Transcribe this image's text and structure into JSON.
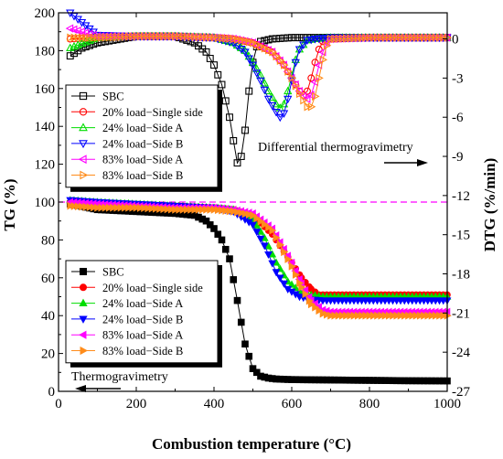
{
  "chart_data": {
    "type": "line",
    "xlabel": "Combustion temperature (°C)",
    "ylabel_left": "TG (%)",
    "ylabel_right": "DTG (%/min)",
    "xlim": [
      0,
      1000
    ],
    "ylim_left": [
      0,
      200
    ],
    "ylim_right": [
      -27,
      2
    ],
    "x_ticks": [
      0,
      200,
      400,
      600,
      800,
      1000
    ],
    "y_left_ticks": [
      0,
      20,
      40,
      60,
      80,
      100,
      120,
      140,
      160,
      180,
      200
    ],
    "y_right_ticks": [
      0,
      -3,
      -6,
      -9,
      -12,
      -15,
      -18,
      -21,
      -24,
      -27
    ],
    "reference_line": {
      "axis": "left",
      "y": 100,
      "color": "#ff00ff",
      "style": "dashed"
    },
    "annotations": [
      {
        "text": "Differential thermogravimetry",
        "arrow": "right"
      },
      {
        "text": "Thermogravimetry",
        "arrow": "left"
      }
    ],
    "series_tg": [
      {
        "name": "SBC",
        "color": "#000000",
        "marker": "square",
        "filled": true,
        "x": [
          30,
          100,
          200,
          300,
          350,
          380,
          400,
          420,
          440,
          460,
          480,
          500,
          520,
          540,
          560,
          600,
          700,
          800,
          900,
          1000
        ],
        "y": [
          99,
          96,
          95,
          94,
          93,
          90,
          86,
          80,
          70,
          48,
          25,
          12,
          8,
          7,
          6.5,
          6.2,
          6,
          5.8,
          5.6,
          5.5
        ]
      },
      {
        "name": "20% load−Single side",
        "color": "#ff0000",
        "marker": "circle",
        "filled": true,
        "x": [
          30,
          100,
          200,
          300,
          400,
          450,
          500,
          550,
          600,
          625,
          650,
          670,
          700,
          800,
          900,
          1000
        ],
        "y": [
          100,
          99,
          98,
          98,
          97,
          96,
          93,
          83,
          68,
          60,
          54,
          51,
          51,
          51,
          51,
          51
        ]
      },
      {
        "name": "24% load−Side A",
        "color": "#00dd00",
        "marker": "triangle-up",
        "filled": true,
        "x": [
          30,
          100,
          200,
          300,
          400,
          450,
          500,
          530,
          560,
          590,
          620,
          650,
          680,
          700,
          800,
          900,
          1000
        ],
        "y": [
          101,
          100,
          99,
          98,
          97,
          96,
          91,
          81,
          68,
          58,
          53,
          51,
          50,
          50,
          50,
          50,
          50
        ]
      },
      {
        "name": "24% load−Side B",
        "color": "#0000ff",
        "marker": "triangle-down",
        "filled": true,
        "x": [
          30,
          100,
          200,
          300,
          400,
          450,
          500,
          530,
          560,
          590,
          620,
          650,
          680,
          700,
          800,
          900,
          1000
        ],
        "y": [
          101,
          100,
          99,
          98,
          97,
          95,
          88,
          77,
          63,
          54,
          50,
          48.5,
          48,
          48,
          48,
          48,
          48
        ]
      },
      {
        "name": "83% load−Side A",
        "color": "#ff00ff",
        "marker": "triangle-left",
        "filled": true,
        "x": [
          30,
          100,
          200,
          300,
          400,
          450,
          500,
          550,
          600,
          625,
          650,
          680,
          700,
          800,
          900,
          1000
        ],
        "y": [
          100,
          99,
          98,
          97,
          97,
          96,
          94,
          86,
          68,
          57,
          48,
          43,
          42,
          42,
          42,
          42
        ]
      },
      {
        "name": "83% load−Side B",
        "color": "#ff8c1a",
        "marker": "triangle-right",
        "filled": true,
        "x": [
          30,
          100,
          200,
          300,
          400,
          450,
          500,
          550,
          600,
          625,
          650,
          680,
          700,
          800,
          900,
          1000
        ],
        "y": [
          98,
          97,
          97,
          96,
          96,
          95,
          93,
          85,
          66,
          55,
          46,
          41,
          40,
          40,
          40,
          40
        ]
      }
    ],
    "series_dtg": [
      {
        "name": "SBC",
        "color": "#000000",
        "marker": "square",
        "filled": false,
        "x": [
          30,
          60,
          100,
          200,
          300,
          350,
          380,
          400,
          420,
          440,
          450,
          460,
          470,
          480,
          490,
          500,
          510,
          520,
          550,
          600,
          700,
          800,
          900,
          1000
        ],
        "y": [
          -1.3,
          -0.7,
          -0.3,
          0.2,
          0.2,
          -0.3,
          -1.0,
          -2.0,
          -3.5,
          -6.0,
          -7.8,
          -9.5,
          -9.0,
          -7.0,
          -4.0,
          -1.8,
          -0.6,
          -0.2,
          0.0,
          0.1,
          0.1,
          0.1,
          0.1,
          0.1
        ]
      },
      {
        "name": "20% load−Single side",
        "color": "#ff0000",
        "marker": "circle",
        "filled": false,
        "x": [
          30,
          100,
          200,
          300,
          400,
          450,
          500,
          550,
          580,
          600,
          610,
          620,
          630,
          640,
          650,
          660,
          670,
          680,
          700,
          800,
          900,
          1000
        ],
        "y": [
          0.0,
          0.1,
          0.2,
          0.2,
          0.1,
          0.0,
          -0.3,
          -1.0,
          -2.0,
          -3.0,
          -3.5,
          -4.0,
          -4.3,
          -4.0,
          -3.0,
          -1.8,
          -0.8,
          -0.2,
          0.0,
          0.1,
          0.1,
          0.1
        ]
      },
      {
        "name": "24% load−Side A",
        "color": "#00dd00",
        "marker": "triangle-up",
        "filled": false,
        "x": [
          30,
          100,
          200,
          300,
          400,
          450,
          480,
          500,
          520,
          540,
          560,
          570,
          580,
          590,
          600,
          610,
          620,
          640,
          660,
          700,
          800,
          900,
          1000
        ],
        "y": [
          -0.7,
          0.1,
          0.2,
          0.2,
          0.1,
          -0.3,
          -0.9,
          -1.8,
          -2.8,
          -4.0,
          -5.0,
          -5.3,
          -5.0,
          -4.0,
          -2.8,
          -1.6,
          -0.8,
          -0.1,
          0.0,
          0.1,
          0.1,
          0.1,
          0.1
        ]
      },
      {
        "name": "24% load−Side B",
        "color": "#0000ff",
        "marker": "triangle-down",
        "filled": false,
        "x": [
          30,
          100,
          200,
          300,
          400,
          450,
          480,
          500,
          520,
          540,
          560,
          570,
          580,
          590,
          600,
          610,
          620,
          640,
          660,
          700,
          800,
          900,
          1000
        ],
        "y": [
          2.0,
          0.3,
          0.2,
          0.2,
          0.1,
          -0.3,
          -1.0,
          -2.0,
          -3.2,
          -4.6,
          -5.6,
          -6.0,
          -5.7,
          -4.6,
          -3.2,
          -1.8,
          -0.8,
          -0.1,
          0.0,
          0.1,
          0.1,
          0.1,
          0.1
        ]
      },
      {
        "name": "83% load−Side A",
        "color": "#ff00ff",
        "marker": "triangle-left",
        "filled": false,
        "x": [
          30,
          100,
          200,
          300,
          400,
          450,
          500,
          550,
          580,
          600,
          620,
          630,
          640,
          650,
          660,
          670,
          680,
          690,
          700,
          800,
          900,
          1000
        ],
        "y": [
          0.8,
          0.2,
          0.2,
          0.2,
          0.1,
          0.0,
          -0.3,
          -1.0,
          -2.0,
          -3.0,
          -4.0,
          -4.4,
          -4.6,
          -4.3,
          -3.3,
          -2.0,
          -1.0,
          -0.3,
          0.0,
          0.1,
          0.1,
          0.1
        ]
      },
      {
        "name": "83% load−Side B",
        "color": "#ff8c1a",
        "marker": "triangle-right",
        "filled": false,
        "x": [
          30,
          100,
          200,
          300,
          400,
          450,
          500,
          550,
          580,
          600,
          620,
          640,
          650,
          660,
          670,
          680,
          690,
          700,
          800,
          900,
          1000
        ],
        "y": [
          0.1,
          0.1,
          0.2,
          0.2,
          0.1,
          0.0,
          -0.3,
          -1.0,
          -2.0,
          -3.0,
          -4.2,
          -5.2,
          -5.2,
          -4.4,
          -3.0,
          -1.6,
          -0.5,
          0.0,
          0.1,
          0.1,
          0.1
        ]
      }
    ],
    "legend_dtg": {
      "placement": "upper-left"
    },
    "legend_tg": {
      "placement": "lower-left"
    }
  }
}
